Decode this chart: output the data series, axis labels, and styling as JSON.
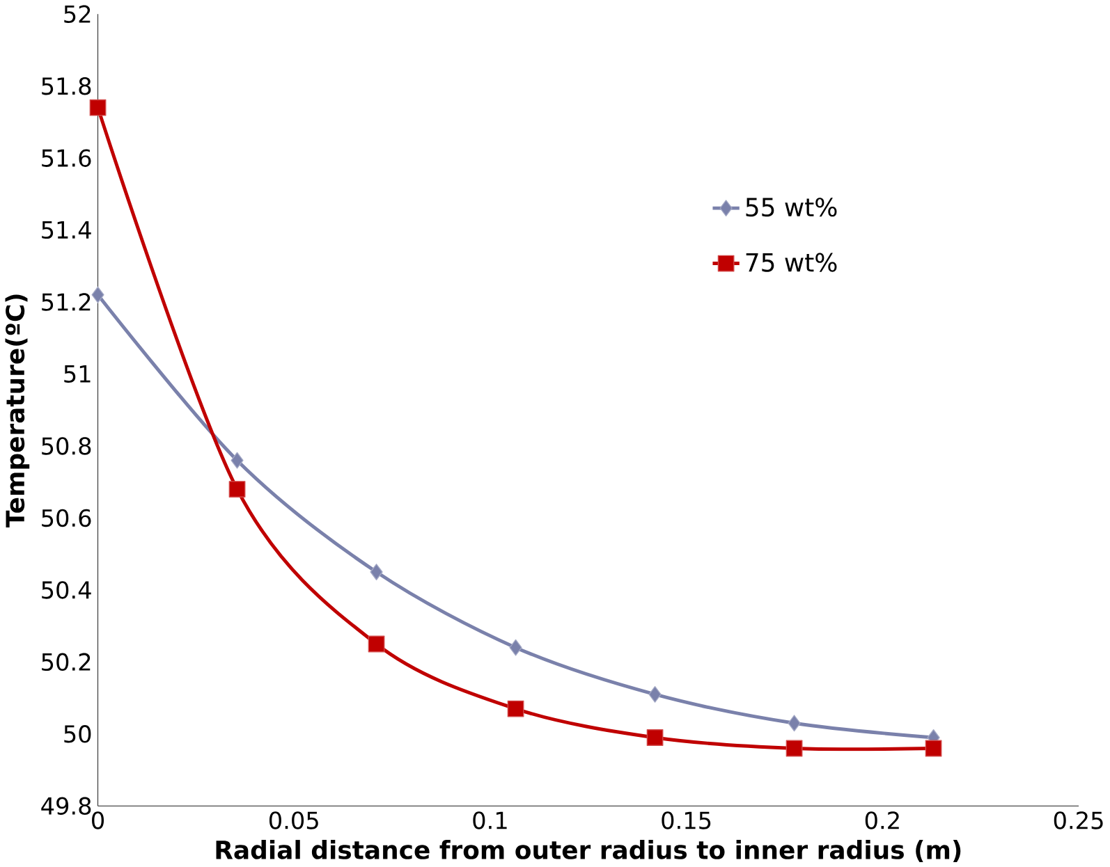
{
  "chart_data": {
    "type": "line",
    "xlabel": "Radial distance from outer radius to inner radius (m)",
    "ylabel": "Temperature(ºC)",
    "x": [
      0,
      0.0355,
      0.071,
      0.1065,
      0.142,
      0.1775,
      0.213
    ],
    "series": [
      {
        "name": "55 wt%",
        "color": "#7a81ab",
        "marker": "diamond",
        "values": [
          51.22,
          50.76,
          50.45,
          50.24,
          50.11,
          50.03,
          49.99
        ]
      },
      {
        "name": "75 wt%",
        "color": "#c00000",
        "marker": "square",
        "values": [
          51.74,
          50.68,
          50.25,
          50.07,
          49.99,
          49.96,
          49.96
        ]
      }
    ],
    "xlim": [
      0,
      0.25
    ],
    "xticks": [
      0,
      0.05,
      0.1,
      0.15,
      0.2,
      0.25
    ],
    "ylim": [
      49.8,
      52
    ],
    "yticks": [
      49.8,
      50,
      50.2,
      50.4,
      50.6,
      50.8,
      51,
      51.2,
      51.4,
      51.6,
      51.8,
      52
    ],
    "grid": false,
    "legend": "right"
  }
}
